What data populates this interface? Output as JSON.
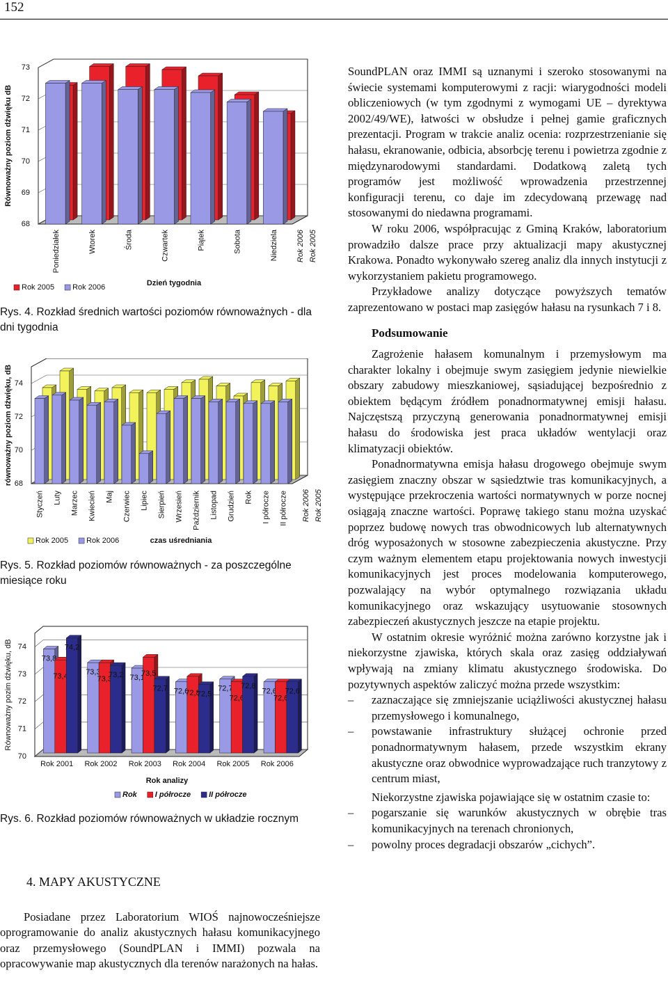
{
  "page_number": "152",
  "chart_data": [
    {
      "type": "bar3d",
      "y_label": "Równoważny poziom dźwięku dB",
      "x_label": "Dzień tygodnia",
      "categories": [
        "Poniedziałek",
        "Wtorek",
        "Środa",
        "Czwartek",
        "Piątek",
        "Sobota",
        "Niedziela"
      ],
      "series": [
        {
          "name": "Rok 2005",
          "color": "#e8212a",
          "values": [
            72.3,
            72.9,
            72.9,
            72.8,
            72.6,
            72.0,
            71.4
          ]
        },
        {
          "name": "Rok 2006",
          "color": "#9999e6",
          "values": [
            72.5,
            72.5,
            72.3,
            72.3,
            72.2,
            71.9,
            71.6
          ]
        }
      ],
      "ylim": [
        68,
        73
      ],
      "yticks": [
        68,
        69,
        70,
        71,
        72,
        73
      ],
      "grid": true,
      "legend": "bottom-left"
    },
    {
      "type": "bar3d",
      "y_label": "równoważny poziom dźwięku, dB",
      "x_label": "czas uśredniania",
      "categories": [
        "Styczeń",
        "Luty",
        "Marzec",
        "Kwiecień",
        "Maj",
        "Czerwiec",
        "Lipiec",
        "Sierpień",
        "Wrzesień",
        "Październik",
        "Listopad",
        "Grudzień",
        "Rok",
        "I półrocze",
        "II półrocze"
      ],
      "series": [
        {
          "name": "Rok 2005",
          "color": "#f2f25a",
          "values": [
            73.5,
            74.5,
            73.4,
            73.3,
            73.5,
            73.2,
            73.2,
            73.4,
            73.8,
            74.0,
            73.6,
            73.0,
            73.8,
            73.6,
            73.9
          ]
        },
        {
          "name": "Rok 2006",
          "color": "#9999e6",
          "values": [
            73.1,
            73.3,
            73.0,
            72.7,
            72.9,
            71.5,
            69.8,
            72.2,
            73.1,
            73.1,
            72.9,
            72.9,
            72.8,
            72.8,
            72.9
          ]
        }
      ],
      "ylim": [
        68,
        75
      ],
      "yticks": [
        68,
        70,
        72,
        74
      ],
      "grid": true,
      "legend": "bottom-left"
    },
    {
      "type": "bar",
      "y_label": "Równoważny pozim dźwięku, dB",
      "x_label": "Rok analizy",
      "categories": [
        "Rok 2001",
        "Rok 2002",
        "Rok 2003",
        "Rok 2004",
        "Rok 2005",
        "Rok 2006"
      ],
      "series": [
        {
          "name": "Rok",
          "color": "#9999e6",
          "values": [
            73.8,
            73.3,
            73.1,
            72.6,
            72.7,
            72.6
          ],
          "value_labels": [
            "73,8",
            "73,3",
            "73,1",
            "72,6",
            "72,7",
            "72,6"
          ]
        },
        {
          "name": "I półrocze",
          "color": "#e8212a",
          "values": [
            73.4,
            73.3,
            73.5,
            72.8,
            72.6,
            72.6
          ],
          "value_labels": [
            "73,4",
            "73,3",
            "73,5",
            "72,8",
            "72,6",
            "72,6"
          ]
        },
        {
          "name": "II półrocze",
          "color": "#2c2c8c",
          "values": [
            74.2,
            73.2,
            72.7,
            72.5,
            72.8,
            72.6
          ],
          "value_labels": [
            "74,2",
            "73,2",
            "72,7",
            "72,5",
            "72,8",
            "72,6"
          ]
        }
      ],
      "ylim": [
        70,
        74.5
      ],
      "yticks": [
        70,
        71,
        72,
        73,
        74
      ],
      "grid": true,
      "legend": "bottom"
    }
  ],
  "captions": [
    "Rys. 4. Rozkład średnich wartości poziomów równoważnych - dla dni tygodnia",
    "Rys. 5. Rozkład poziomów równoważnych - za poszczególne miesiące roku",
    "Rys. 6. Rozkład poziomów równoważnych w układzie rocznym"
  ],
  "left_text": {
    "heading": "4. MAPY AKUSTYCZNE",
    "paragraph": "Posiadane przez Laboratorium WIOŚ najnowocześniejsze oprogramowanie do analiz akustycznych hałasu komunikacyjnego oraz przemysłowego (SoundPLAN i IMMI) pozwala na opracowywanie map akustycznych dla terenów narażonych na hałas."
  },
  "right_text": {
    "paragraphs_top": [
      "SoundPLAN oraz IMMI są uznanymi i szeroko stosowanymi na świecie systemami komputerowymi z racji: wiarygodności modeli obliczeniowych (w tym zgodnymi z wymogami UE – dyrektywa 2002/49/WE), łatwości w obsłudze i pełnej gamie graficznych prezentacji. Program w trakcie analiz ocenia: rozprzestrzenianie się hałasu, ekranowanie, odbicia, absorbcję terenu i powietrza zgodnie z międzynarodowymi standardami. Dodatkową zaletą tych programów jest możliwość wprowadzenia przestrzennej konfiguracji terenu, co daje im zdecydowaną przewagę nad stosowanymi do niedawna programami.",
      "W roku 2006, współpracując z Gminą Kraków, laboratorium prowadziło dalsze prace przy aktualizacji mapy akustycznej Krakowa. Ponadto wykonywało szereg analiz dla innych instytucji z wykorzystaniem pakietu programowego.",
      "Przykładowe analizy dotyczące powyższych tematów zaprezentowano w postaci map zasięgów hałasu na rysunkach 7 i 8."
    ],
    "heading": "Podsumowanie",
    "paragraphs": [
      "Zagrożenie hałasem komunalnym i przemysłowym ma charakter lokalny i obejmuje swym zasięgiem jedynie niewielkie obszary zabudowy mieszkaniowej, sąsiadującej bezpośrednio z obiektem będącym źródłem ponadnormatywnej emisji hałasu. Najczęstszą przyczyną generowania ponadnormatywnej emisji hałasu do środowiska jest praca układów wentylacji oraz klimatyzacji obiektów.",
      "Ponadnormatywna emisja hałasu drogowego obejmuje swym zasięgiem znaczny obszar w sąsiedztwie tras komunikacyjnych, a występujące przekroczenia wartości normatywnych w porze nocnej osiągają znaczne wartości. Poprawę takiego stanu można uzyskać poprzez budowę nowych tras obwodnicowych lub alternatywnych dróg wyposażonych w stosowne zabezpieczenia akustyczne. Przy czym ważnym elementem etapu projektowania nowych inwestycji komunikacyjnych jest proces modelowania komputerowego, pozwalający na wybór optymalnego rozwiązania układu komunikacyjnego oraz wskazujący usytuowanie stosownych zabezpieczeń akustycznych jeszcze na etapie projektu.",
      "W ostatnim okresie wyróżnić można zarówno korzystne jak i niekorzystne zjawiska, których skala oraz zasięg oddziaływań wpływają na zmiany klimatu akustycznego środowiska. Do pozytywnych aspektów zaliczyć można przede wszystkim:"
    ],
    "list_positive": [
      "zaznaczające się zmniejszanie uciążliwości akustycznej hałasu przemysłowego i komunalnego,",
      "powstawanie infrastruktury służącej ochronie przed ponadnormatywnym hałasem, przede wszystkim ekrany akustyczne oraz obwodnice wyprowadzające ruch tranzytowy z centrum miast,"
    ],
    "paragraph_negative": "Niekorzystne zjawiska pojawiające się w ostatnim czasie to:",
    "list_negative": [
      "pogarszanie się warunków akustycznych w obrębie tras komunikacyjnych na terenach chronionych,",
      "powolny proces degradacji obszarów „cichych”."
    ]
  }
}
